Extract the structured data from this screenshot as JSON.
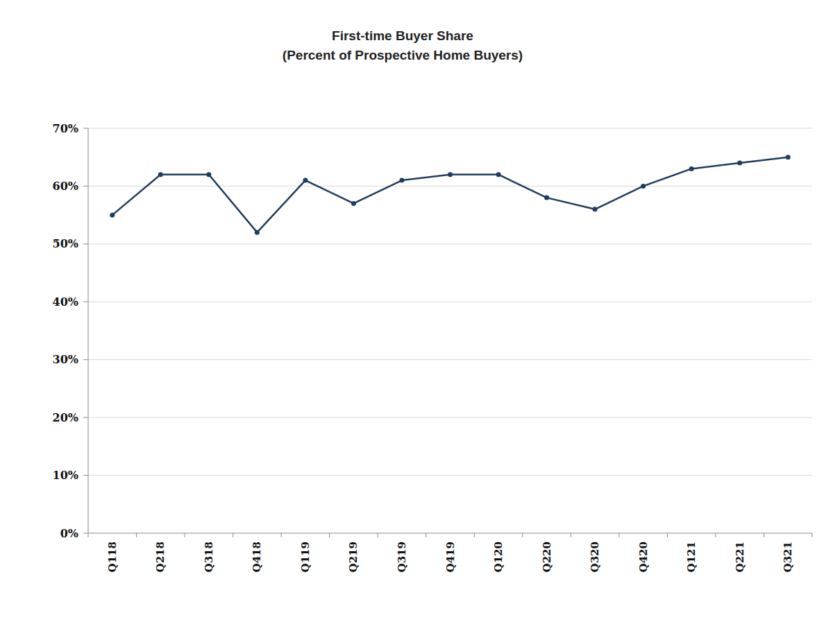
{
  "chart_data": {
    "type": "line",
    "title": "First-time Buyer Share",
    "subtitle": "(Percent of Prospective Home Buyers)",
    "categories": [
      "Q118",
      "Q218",
      "Q318",
      "Q418",
      "Q119",
      "Q219",
      "Q319",
      "Q419",
      "Q120",
      "Q220",
      "Q320",
      "Q420",
      "Q121",
      "Q221",
      "Q321"
    ],
    "values": [
      55,
      62,
      62,
      52,
      61,
      57,
      61,
      62,
      62,
      58,
      56,
      60,
      63,
      64,
      65
    ],
    "color": "#1f3d5c",
    "marker": "circle",
    "ylim": [
      0,
      70
    ],
    "yticks": [
      {
        "value": 0,
        "label": "0%"
      },
      {
        "value": 10,
        "label": "10%"
      },
      {
        "value": 20,
        "label": "20%"
      },
      {
        "value": 30,
        "label": "30%"
      },
      {
        "value": 40,
        "label": "40%"
      },
      {
        "value": 50,
        "label": "50%"
      },
      {
        "value": 60,
        "label": "60%"
      },
      {
        "value": 70,
        "label": "70%"
      }
    ],
    "grid": true
  }
}
